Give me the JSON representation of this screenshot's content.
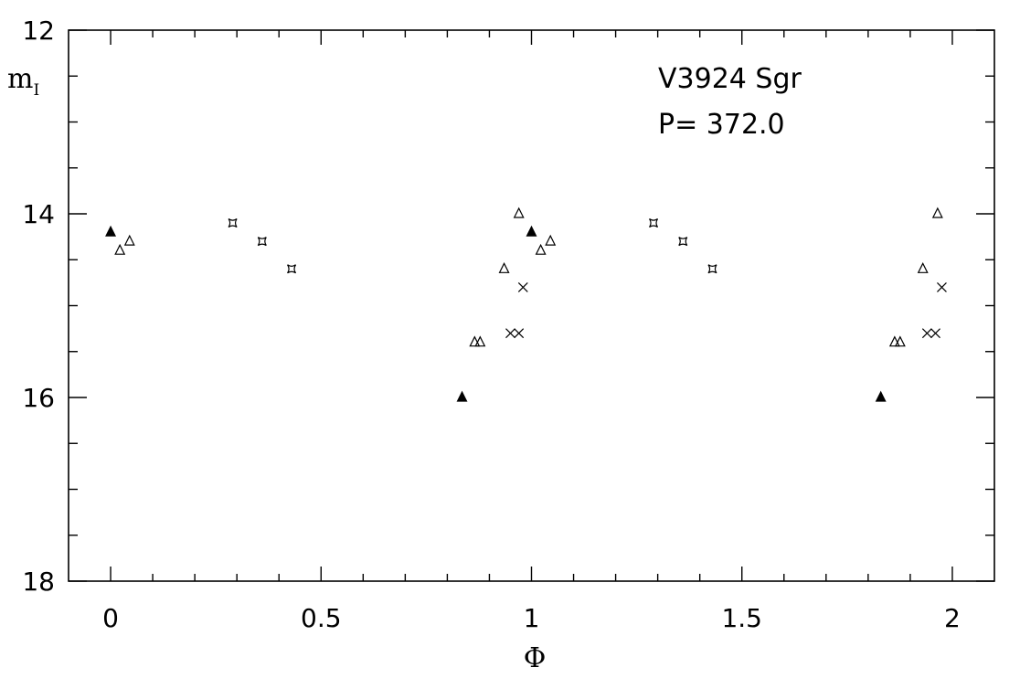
{
  "chart_data": {
    "type": "scatter",
    "title": "",
    "annotations": [
      "V3924 Sgr",
      "P= 372.0"
    ],
    "xlabel": "Φ",
    "ylabel": "m",
    "ylabel_sub": "I",
    "xlim": [
      -0.1,
      2.1
    ],
    "ylim": [
      18,
      12
    ],
    "y_inverted": true,
    "grid": false,
    "x_ticks_major": [
      0,
      0.5,
      1,
      1.5,
      2
    ],
    "x_tick_labels": [
      "0",
      "0.5",
      "1",
      "1.5",
      "2"
    ],
    "y_ticks_major": [
      12,
      14,
      16,
      18
    ],
    "y_tick_labels": [
      "12",
      "14",
      "16",
      "18"
    ],
    "series": [
      {
        "marker": "filled-triangle",
        "points": [
          [
            0.0,
            14.2
          ],
          [
            0.835,
            16.0
          ],
          [
            1.0,
            14.2
          ],
          [
            1.83,
            16.0
          ]
        ]
      },
      {
        "marker": "open-triangle",
        "points": [
          [
            0.022,
            14.4
          ],
          [
            0.045,
            14.3
          ],
          [
            0.865,
            15.4
          ],
          [
            0.878,
            15.4
          ],
          [
            0.935,
            14.6
          ],
          [
            0.97,
            14.0
          ],
          [
            1.022,
            14.4
          ],
          [
            1.045,
            14.3
          ],
          [
            1.863,
            15.4
          ],
          [
            1.876,
            15.4
          ],
          [
            1.93,
            14.6
          ],
          [
            1.965,
            14.0
          ]
        ]
      },
      {
        "marker": "x-cross",
        "points": [
          [
            0.95,
            15.3
          ],
          [
            0.97,
            15.3
          ],
          [
            0.98,
            14.8
          ],
          [
            1.94,
            15.3
          ],
          [
            1.96,
            15.3
          ],
          [
            1.975,
            14.8
          ]
        ]
      },
      {
        "marker": "star",
        "points": [
          [
            0.29,
            14.1
          ],
          [
            0.36,
            14.3
          ],
          [
            0.43,
            14.6
          ],
          [
            1.29,
            14.1
          ],
          [
            1.36,
            14.3
          ],
          [
            1.43,
            14.6
          ]
        ]
      }
    ]
  }
}
